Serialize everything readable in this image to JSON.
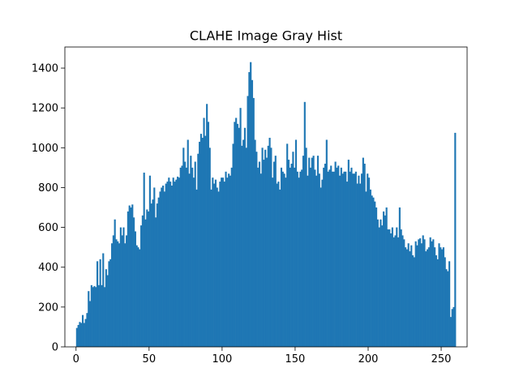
{
  "chart_data": {
    "type": "bar",
    "title": "CLAHE Image Gray Hist",
    "xlabel": "",
    "ylabel": "",
    "xlim": [
      -7.65,
      267.75
    ],
    "ylim": [
      0,
      1506
    ],
    "x_ticks": [
      0,
      50,
      100,
      150,
      200,
      250
    ],
    "y_ticks": [
      0,
      200,
      400,
      600,
      800,
      1000,
      1200,
      1400
    ],
    "grid": false,
    "legend": "none",
    "bar_color": "#1f77b4",
    "bins": {
      "start": 0,
      "width": 1
    },
    "values": [
      95,
      110,
      125,
      120,
      160,
      120,
      140,
      170,
      280,
      230,
      310,
      300,
      305,
      300,
      430,
      310,
      440,
      310,
      470,
      300,
      390,
      360,
      430,
      440,
      520,
      560,
      640,
      540,
      530,
      520,
      600,
      560,
      600,
      520,
      560,
      680,
      710,
      700,
      715,
      650,
      580,
      510,
      500,
      490,
      610,
      660,
      875,
      640,
      690,
      680,
      860,
      720,
      740,
      800,
      650,
      720,
      750,
      780,
      800,
      810,
      780,
      820,
      830,
      850,
      830,
      810,
      850,
      830,
      840,
      855,
      850,
      900,
      910,
      1000,
      930,
      900,
      1040,
      870,
      960,
      900,
      850,
      930,
      790,
      970,
      1030,
      1070,
      1050,
      1150,
      1060,
      1220,
      1130,
      1000,
      790,
      850,
      820,
      840,
      800,
      780,
      830,
      850,
      850,
      830,
      880,
      850,
      870,
      860,
      900,
      1020,
      1130,
      1150,
      1120,
      1100,
      1200,
      1010,
      1040,
      1100,
      1000,
      1260,
      1380,
      1430,
      1340,
      1250,
      1040,
      980,
      900,
      930,
      870,
      1000,
      940,
      990,
      950,
      1010,
      1050,
      1000,
      850,
      930,
      960,
      820,
      830,
      790,
      900,
      880,
      870,
      850,
      1020,
      940,
      900,
      920,
      980,
      900,
      1040,
      880,
      850,
      880,
      890,
      960,
      1230,
      1000,
      860,
      950,
      900,
      950,
      960,
      890,
      860,
      960,
      870,
      800,
      840,
      900,
      920,
      1040,
      880,
      890,
      910,
      880,
      880,
      930,
      900,
      910,
      860,
      900,
      870,
      880,
      880,
      830,
      940,
      880,
      900,
      870,
      870,
      880,
      820,
      860,
      820,
      870,
      950,
      920,
      780,
      870,
      850,
      790,
      760,
      750,
      730,
      700,
      640,
      600,
      640,
      610,
      680,
      660,
      700,
      590,
      590,
      570,
      600,
      550,
      560,
      600,
      550,
      700,
      590,
      560,
      540,
      500,
      490,
      520,
      480,
      510,
      460,
      450,
      530,
      510,
      540,
      545,
      520,
      560,
      540,
      480,
      490,
      500,
      550,
      530,
      540,
      500,
      460,
      440,
      520,
      500,
      490,
      500,
      450,
      390,
      380,
      430,
      150,
      190,
      200,
      1075
    ]
  }
}
